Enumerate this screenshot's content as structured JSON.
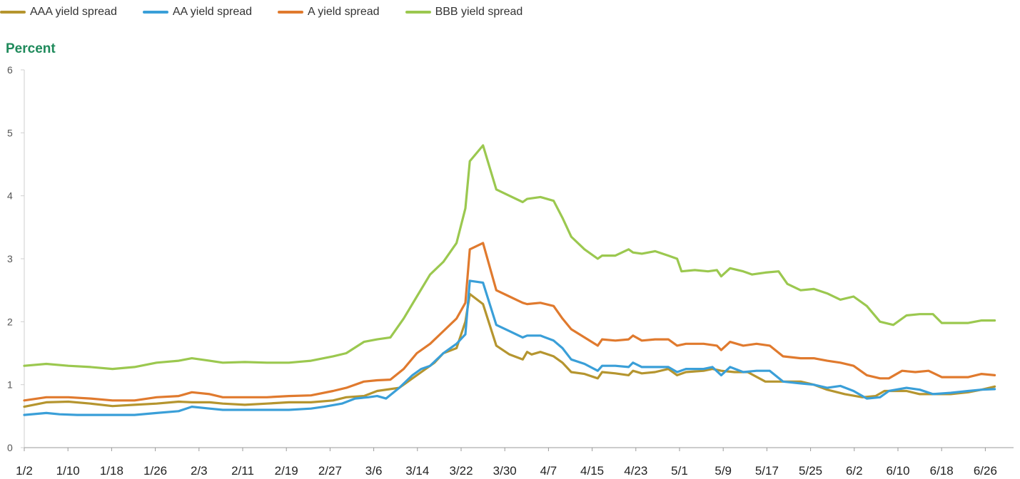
{
  "legend": [
    {
      "name": "AAA yield spread",
      "color": "#b5952f"
    },
    {
      "name": "AA yield spread",
      "color": "#3a9fd8"
    },
    {
      "name": "A yield spread",
      "color": "#e07a2e"
    },
    {
      "name": "BBB yield spread",
      "color": "#9bc84f"
    }
  ],
  "chart_data": {
    "type": "line",
    "ylabel": "Percent",
    "ylim": [
      0,
      6
    ],
    "yticks": [
      "0",
      "1",
      "2",
      "3",
      "4",
      "5",
      "6"
    ],
    "xlabels": [
      "1/2",
      "1/10",
      "1/18",
      "1/26",
      "2/3",
      "2/11",
      "2/19",
      "2/27",
      "3/6",
      "3/14",
      "3/22",
      "3/30",
      "4/7",
      "4/15",
      "4/23",
      "5/1",
      "5/9",
      "5/17",
      "5/25",
      "6/2",
      "6/10",
      "6/18",
      "6/26"
    ],
    "grid": false,
    "legend_position": "top-left",
    "series": [
      {
        "name": "AAA yield spread",
        "color": "#b5952f",
        "points": [
          [
            0,
            0.65
          ],
          [
            5,
            0.72
          ],
          [
            10,
            0.73
          ],
          [
            15,
            0.7
          ],
          [
            20,
            0.66
          ],
          [
            25,
            0.68
          ],
          [
            30,
            0.7
          ],
          [
            35,
            0.73
          ],
          [
            38,
            0.72
          ],
          [
            42,
            0.72
          ],
          [
            45,
            0.7
          ],
          [
            50,
            0.68
          ],
          [
            55,
            0.7
          ],
          [
            60,
            0.72
          ],
          [
            65,
            0.72
          ],
          [
            70,
            0.75
          ],
          [
            73,
            0.8
          ],
          [
            77,
            0.82
          ],
          [
            80,
            0.9
          ],
          [
            85,
            0.95
          ],
          [
            88,
            1.1
          ],
          [
            90,
            1.2
          ],
          [
            93,
            1.35
          ],
          [
            95,
            1.5
          ],
          [
            98,
            1.58
          ],
          [
            100,
            2.0
          ],
          [
            101,
            2.44
          ],
          [
            104,
            2.28
          ],
          [
            107,
            1.62
          ],
          [
            110,
            1.48
          ],
          [
            113,
            1.4
          ],
          [
            114,
            1.52
          ],
          [
            115,
            1.48
          ],
          [
            117,
            1.52
          ],
          [
            120,
            1.45
          ],
          [
            122,
            1.35
          ],
          [
            124,
            1.2
          ],
          [
            127,
            1.17
          ],
          [
            130,
            1.1
          ],
          [
            131,
            1.2
          ],
          [
            134,
            1.18
          ],
          [
            137,
            1.15
          ],
          [
            138,
            1.22
          ],
          [
            140,
            1.18
          ],
          [
            143,
            1.2
          ],
          [
            146,
            1.25
          ],
          [
            148,
            1.15
          ],
          [
            150,
            1.2
          ],
          [
            154,
            1.22
          ],
          [
            156,
            1.25
          ],
          [
            158,
            1.22
          ],
          [
            161,
            1.2
          ],
          [
            164,
            1.2
          ],
          [
            168,
            1.05
          ],
          [
            172,
            1.05
          ],
          [
            176,
            1.05
          ],
          [
            179,
            1.0
          ],
          [
            182,
            0.92
          ],
          [
            186,
            0.85
          ],
          [
            190,
            0.8
          ],
          [
            193,
            0.82
          ],
          [
            195,
            0.9
          ],
          [
            200,
            0.9
          ],
          [
            203,
            0.85
          ],
          [
            206,
            0.85
          ],
          [
            210,
            0.85
          ],
          [
            214,
            0.88
          ],
          [
            217,
            0.92
          ],
          [
            220,
            0.97
          ]
        ]
      },
      {
        "name": "AA yield spread",
        "color": "#3a9fd8",
        "points": [
          [
            0,
            0.52
          ],
          [
            5,
            0.55
          ],
          [
            8,
            0.53
          ],
          [
            12,
            0.52
          ],
          [
            16,
            0.52
          ],
          [
            20,
            0.52
          ],
          [
            25,
            0.52
          ],
          [
            30,
            0.55
          ],
          [
            35,
            0.58
          ],
          [
            38,
            0.65
          ],
          [
            42,
            0.62
          ],
          [
            45,
            0.6
          ],
          [
            50,
            0.6
          ],
          [
            55,
            0.6
          ],
          [
            60,
            0.6
          ],
          [
            65,
            0.62
          ],
          [
            68,
            0.65
          ],
          [
            72,
            0.7
          ],
          [
            75,
            0.78
          ],
          [
            78,
            0.8
          ],
          [
            80,
            0.82
          ],
          [
            82,
            0.78
          ],
          [
            85,
            0.95
          ],
          [
            88,
            1.15
          ],
          [
            90,
            1.25
          ],
          [
            92,
            1.3
          ],
          [
            95,
            1.5
          ],
          [
            98,
            1.65
          ],
          [
            100,
            1.8
          ],
          [
            101,
            2.65
          ],
          [
            104,
            2.62
          ],
          [
            107,
            1.95
          ],
          [
            110,
            1.85
          ],
          [
            113,
            1.75
          ],
          [
            114,
            1.78
          ],
          [
            117,
            1.78
          ],
          [
            120,
            1.7
          ],
          [
            122,
            1.58
          ],
          [
            124,
            1.4
          ],
          [
            127,
            1.33
          ],
          [
            130,
            1.22
          ],
          [
            131,
            1.3
          ],
          [
            134,
            1.3
          ],
          [
            137,
            1.28
          ],
          [
            138,
            1.35
          ],
          [
            140,
            1.28
          ],
          [
            143,
            1.28
          ],
          [
            146,
            1.28
          ],
          [
            148,
            1.2
          ],
          [
            150,
            1.25
          ],
          [
            154,
            1.25
          ],
          [
            156,
            1.28
          ],
          [
            158,
            1.15
          ],
          [
            160,
            1.28
          ],
          [
            163,
            1.2
          ],
          [
            166,
            1.22
          ],
          [
            169,
            1.22
          ],
          [
            172,
            1.05
          ],
          [
            176,
            1.02
          ],
          [
            179,
            1.0
          ],
          [
            182,
            0.95
          ],
          [
            185,
            0.98
          ],
          [
            188,
            0.9
          ],
          [
            191,
            0.78
          ],
          [
            194,
            0.8
          ],
          [
            196,
            0.9
          ],
          [
            200,
            0.95
          ],
          [
            203,
            0.92
          ],
          [
            206,
            0.85
          ],
          [
            210,
            0.87
          ],
          [
            214,
            0.9
          ],
          [
            217,
            0.92
          ],
          [
            220,
            0.93
          ]
        ]
      },
      {
        "name": "A yield spread",
        "color": "#e07a2e",
        "points": [
          [
            0,
            0.75
          ],
          [
            5,
            0.8
          ],
          [
            10,
            0.8
          ],
          [
            15,
            0.78
          ],
          [
            20,
            0.75
          ],
          [
            25,
            0.75
          ],
          [
            30,
            0.8
          ],
          [
            35,
            0.82
          ],
          [
            38,
            0.88
          ],
          [
            42,
            0.85
          ],
          [
            45,
            0.8
          ],
          [
            50,
            0.8
          ],
          [
            55,
            0.8
          ],
          [
            60,
            0.82
          ],
          [
            65,
            0.83
          ],
          [
            70,
            0.9
          ],
          [
            73,
            0.95
          ],
          [
            77,
            1.05
          ],
          [
            80,
            1.07
          ],
          [
            83,
            1.08
          ],
          [
            86,
            1.25
          ],
          [
            89,
            1.5
          ],
          [
            92,
            1.65
          ],
          [
            95,
            1.85
          ],
          [
            98,
            2.05
          ],
          [
            100,
            2.3
          ],
          [
            101,
            3.15
          ],
          [
            104,
            3.25
          ],
          [
            107,
            2.5
          ],
          [
            110,
            2.4
          ],
          [
            113,
            2.3
          ],
          [
            114,
            2.28
          ],
          [
            117,
            2.3
          ],
          [
            120,
            2.25
          ],
          [
            122,
            2.05
          ],
          [
            124,
            1.88
          ],
          [
            127,
            1.75
          ],
          [
            130,
            1.62
          ],
          [
            131,
            1.72
          ],
          [
            134,
            1.7
          ],
          [
            137,
            1.72
          ],
          [
            138,
            1.78
          ],
          [
            140,
            1.7
          ],
          [
            143,
            1.72
          ],
          [
            146,
            1.72
          ],
          [
            148,
            1.62
          ],
          [
            150,
            1.65
          ],
          [
            154,
            1.65
          ],
          [
            157,
            1.62
          ],
          [
            158,
            1.55
          ],
          [
            160,
            1.68
          ],
          [
            163,
            1.62
          ],
          [
            166,
            1.65
          ],
          [
            169,
            1.62
          ],
          [
            172,
            1.45
          ],
          [
            176,
            1.42
          ],
          [
            179,
            1.42
          ],
          [
            182,
            1.38
          ],
          [
            185,
            1.35
          ],
          [
            188,
            1.3
          ],
          [
            191,
            1.15
          ],
          [
            194,
            1.1
          ],
          [
            196,
            1.1
          ],
          [
            199,
            1.22
          ],
          [
            202,
            1.2
          ],
          [
            205,
            1.22
          ],
          [
            208,
            1.12
          ],
          [
            211,
            1.12
          ],
          [
            214,
            1.12
          ],
          [
            217,
            1.17
          ],
          [
            220,
            1.15
          ]
        ]
      },
      {
        "name": "BBB yield spread",
        "color": "#9bc84f",
        "points": [
          [
            0,
            1.3
          ],
          [
            5,
            1.33
          ],
          [
            10,
            1.3
          ],
          [
            15,
            1.28
          ],
          [
            20,
            1.25
          ],
          [
            25,
            1.28
          ],
          [
            30,
            1.35
          ],
          [
            35,
            1.38
          ],
          [
            38,
            1.42
          ],
          [
            42,
            1.38
          ],
          [
            45,
            1.35
          ],
          [
            50,
            1.36
          ],
          [
            55,
            1.35
          ],
          [
            60,
            1.35
          ],
          [
            65,
            1.38
          ],
          [
            70,
            1.45
          ],
          [
            73,
            1.5
          ],
          [
            77,
            1.68
          ],
          [
            80,
            1.72
          ],
          [
            83,
            1.75
          ],
          [
            86,
            2.05
          ],
          [
            89,
            2.4
          ],
          [
            92,
            2.75
          ],
          [
            95,
            2.95
          ],
          [
            98,
            3.25
          ],
          [
            100,
            3.8
          ],
          [
            101,
            4.55
          ],
          [
            104,
            4.8
          ],
          [
            107,
            4.1
          ],
          [
            110,
            4.0
          ],
          [
            113,
            3.9
          ],
          [
            114,
            3.95
          ],
          [
            117,
            3.98
          ],
          [
            120,
            3.92
          ],
          [
            122,
            3.65
          ],
          [
            124,
            3.35
          ],
          [
            127,
            3.15
          ],
          [
            130,
            3.0
          ],
          [
            131,
            3.05
          ],
          [
            134,
            3.05
          ],
          [
            137,
            3.15
          ],
          [
            138,
            3.1
          ],
          [
            140,
            3.08
          ],
          [
            143,
            3.12
          ],
          [
            146,
            3.05
          ],
          [
            148,
            3.0
          ],
          [
            149,
            2.8
          ],
          [
            152,
            2.82
          ],
          [
            155,
            2.8
          ],
          [
            157,
            2.82
          ],
          [
            158,
            2.72
          ],
          [
            160,
            2.85
          ],
          [
            163,
            2.8
          ],
          [
            165,
            2.75
          ],
          [
            168,
            2.78
          ],
          [
            171,
            2.8
          ],
          [
            173,
            2.6
          ],
          [
            176,
            2.5
          ],
          [
            179,
            2.52
          ],
          [
            182,
            2.45
          ],
          [
            185,
            2.35
          ],
          [
            188,
            2.4
          ],
          [
            191,
            2.25
          ],
          [
            194,
            2.0
          ],
          [
            197,
            1.95
          ],
          [
            200,
            2.1
          ],
          [
            203,
            2.12
          ],
          [
            206,
            2.12
          ],
          [
            208,
            1.98
          ],
          [
            211,
            1.98
          ],
          [
            214,
            1.98
          ],
          [
            217,
            2.02
          ],
          [
            220,
            2.02
          ]
        ]
      }
    ]
  }
}
